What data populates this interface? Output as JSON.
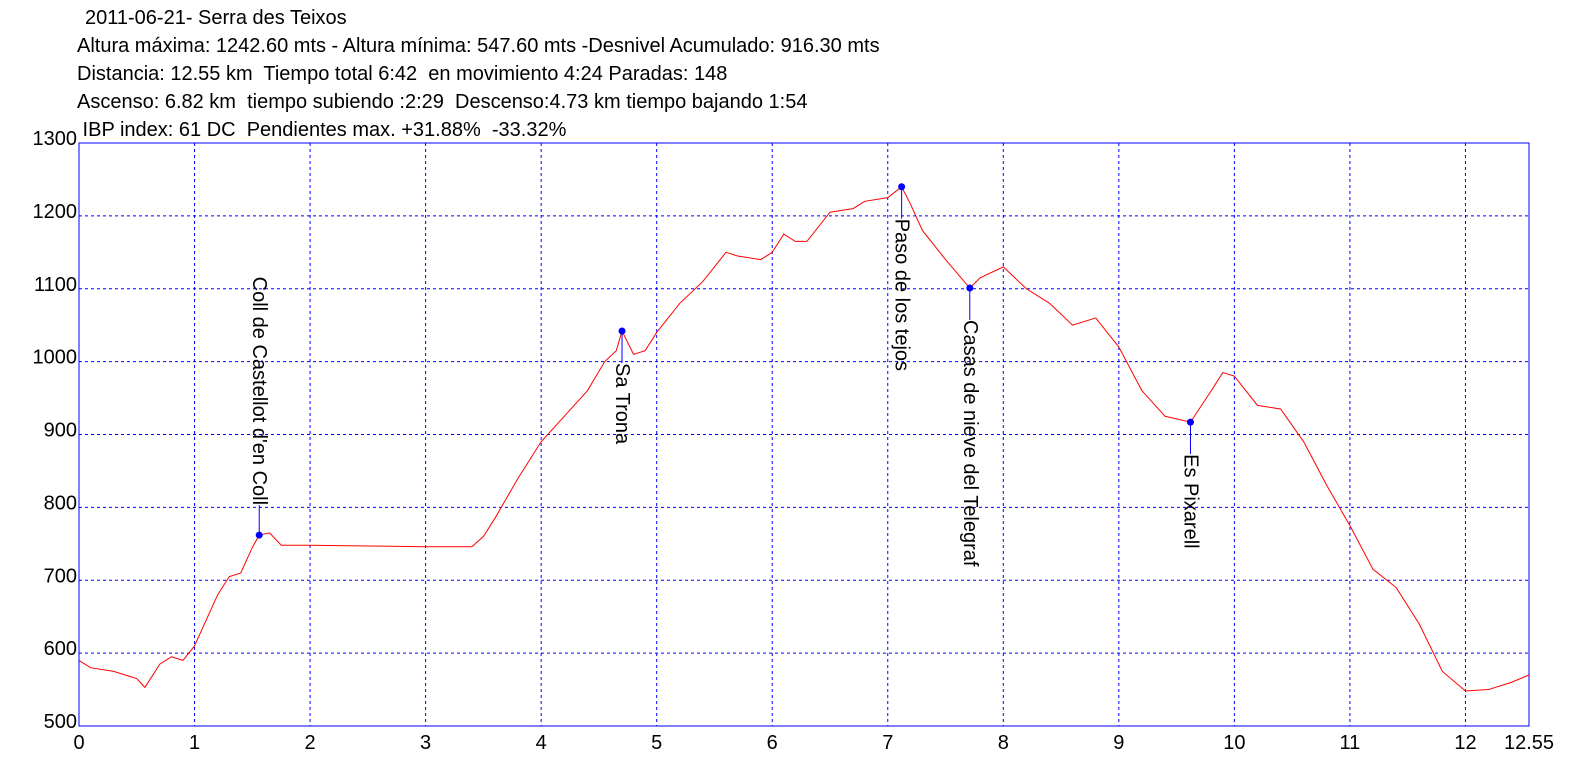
{
  "chart_data": {
    "type": "line",
    "title": "2011-06-21- Serra des Teixos",
    "subtitle": [
      "Altura máxima: 1242.60 mts - Altura mínima: 547.60 mts -Desnivel Acumulado: 916.30 mts",
      "Distancia: 12.55 km  Tiempo total 6:42  en movimiento 4:24 Paradas: 148",
      "Ascenso: 6.82 km  tiempo subiendo :2:29  Descenso:4.73 km tiempo bajando 1:54",
      " IBP index: 61 DC  Pendientes max. +31.88%  -33.32%"
    ],
    "x": [
      0,
      0.1,
      0.3,
      0.4,
      0.5,
      0.57,
      0.7,
      0.8,
      0.9,
      1.0,
      1.1,
      1.2,
      1.3,
      1.4,
      1.5,
      1.56,
      1.65,
      1.75,
      2.0,
      2.5,
      3.0,
      3.4,
      3.5,
      3.6,
      3.8,
      4.0,
      4.2,
      4.4,
      4.55,
      4.65,
      4.7,
      4.8,
      4.9,
      5.0,
      5.2,
      5.4,
      5.6,
      5.7,
      5.9,
      6.0,
      6.1,
      6.2,
      6.3,
      6.5,
      6.7,
      6.8,
      7.0,
      7.12,
      7.2,
      7.3,
      7.5,
      7.71,
      7.8,
      8.0,
      8.2,
      8.4,
      8.6,
      8.8,
      9.0,
      9.2,
      9.4,
      9.62,
      9.8,
      9.9,
      10.0,
      10.2,
      10.4,
      10.6,
      10.8,
      11.0,
      11.2,
      11.4,
      11.6,
      11.8,
      12.0,
      12.2,
      12.4,
      12.55
    ],
    "values": [
      590,
      580,
      575,
      570,
      565,
      553,
      585,
      595,
      590,
      610,
      645,
      680,
      705,
      710,
      745,
      762,
      765,
      748,
      748,
      747,
      746,
      746,
      760,
      785,
      840,
      890,
      925,
      960,
      1000,
      1015,
      1042,
      1010,
      1015,
      1040,
      1080,
      1110,
      1150,
      1145,
      1140,
      1150,
      1175,
      1165,
      1165,
      1205,
      1210,
      1220,
      1225,
      1240,
      1215,
      1180,
      1140,
      1101,
      1115,
      1130,
      1100,
      1080,
      1050,
      1060,
      1020,
      960,
      925,
      917,
      960,
      985,
      980,
      940,
      935,
      890,
      830,
      775,
      715,
      690,
      640,
      575,
      548,
      550,
      560,
      570
    ],
    "color": "#ff0000",
    "xlim": [
      0,
      12.55
    ],
    "ylim": [
      500,
      1300
    ],
    "xticks": [
      0,
      1,
      2,
      3,
      4,
      5,
      6,
      7,
      8,
      9,
      10,
      11,
      12,
      12.55
    ],
    "yticks": [
      500,
      600,
      700,
      800,
      900,
      1000,
      1100,
      1200,
      1300
    ],
    "grid": true,
    "grid_color": "#0000ff",
    "marker_color": "#0000ff",
    "annotations": [
      {
        "label": "Coll de Castellot d'en Coll",
        "x": 1.56,
        "y": 762
      },
      {
        "label": "Sa Trona",
        "x": 4.7,
        "y": 1042
      },
      {
        "label": "Paso de los tejos",
        "x": 7.12,
        "y": 1240
      },
      {
        "label": "Casas de nieve del Telegraf",
        "x": 7.71,
        "y": 1101
      },
      {
        "label": "Es Pixarell",
        "x": 9.62,
        "y": 917
      }
    ]
  }
}
